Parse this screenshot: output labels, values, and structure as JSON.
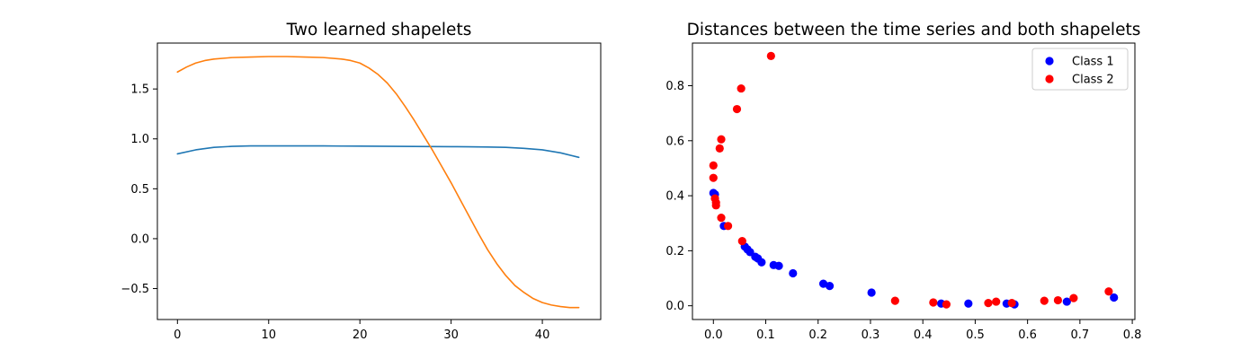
{
  "chart_data": [
    {
      "type": "line",
      "title": "Two learned shapelets",
      "xlabel": "",
      "ylabel": "",
      "xlim": [
        -2.2,
        46.4
      ],
      "ylim": [
        -0.81,
        1.96
      ],
      "xticks": [
        0,
        10,
        20,
        30,
        40
      ],
      "yticks": [
        -0.5,
        0.0,
        0.5,
        1.0,
        1.5
      ],
      "ytick_labels": [
        "−0.5",
        "0.0",
        "0.5",
        "1.0",
        "1.5"
      ],
      "grid": false,
      "series": [
        {
          "color": "#1f77b4",
          "x": [
            0,
            2,
            4,
            6,
            8,
            10,
            12,
            14,
            16,
            18,
            20,
            22,
            24,
            26,
            28,
            30,
            32,
            34,
            36,
            38,
            40,
            42,
            44
          ],
          "y": [
            0.85,
            0.89,
            0.915,
            0.925,
            0.93,
            0.93,
            0.93,
            0.93,
            0.93,
            0.928,
            0.927,
            0.926,
            0.925,
            0.924,
            0.923,
            0.922,
            0.921,
            0.918,
            0.915,
            0.905,
            0.89,
            0.86,
            0.815
          ]
        },
        {
          "color": "#ff7f0e",
          "x": [
            0,
            1,
            2,
            3,
            4,
            6,
            8,
            10,
            12,
            14,
            16,
            18,
            19,
            20,
            21,
            22,
            23,
            24,
            25,
            26,
            27,
            28,
            29,
            30,
            31,
            32,
            33,
            34,
            35,
            36,
            37,
            38,
            39,
            40,
            41,
            42,
            43,
            44
          ],
          "y": [
            1.67,
            1.72,
            1.76,
            1.785,
            1.8,
            1.815,
            1.82,
            1.825,
            1.825,
            1.82,
            1.815,
            1.8,
            1.785,
            1.76,
            1.71,
            1.645,
            1.56,
            1.45,
            1.32,
            1.18,
            1.03,
            0.88,
            0.72,
            0.56,
            0.39,
            0.22,
            0.05,
            -0.11,
            -0.25,
            -0.37,
            -0.47,
            -0.54,
            -0.6,
            -0.64,
            -0.665,
            -0.68,
            -0.69,
            -0.69
          ]
        }
      ]
    },
    {
      "type": "scatter",
      "title": "Distances between the time series and both shapelets",
      "xlabel": "",
      "ylabel": "",
      "xlim": [
        -0.04,
        0.805
      ],
      "ylim": [
        -0.05,
        0.955
      ],
      "xticks": [
        0.0,
        0.1,
        0.2,
        0.3,
        0.4,
        0.5,
        0.6,
        0.7,
        0.8
      ],
      "yticks": [
        0.0,
        0.2,
        0.4,
        0.6,
        0.8
      ],
      "grid": false,
      "legend_position": "upper-right",
      "series": [
        {
          "name": "Class 1",
          "color": "#0000ff",
          "x": [
            0.0,
            0.003,
            0.02,
            0.06,
            0.065,
            0.07,
            0.08,
            0.085,
            0.092,
            0.115,
            0.125,
            0.152,
            0.21,
            0.222,
            0.302,
            0.435,
            0.487,
            0.56,
            0.575,
            0.675,
            0.765
          ],
          "y": [
            0.41,
            0.405,
            0.29,
            0.215,
            0.205,
            0.195,
            0.178,
            0.172,
            0.158,
            0.148,
            0.145,
            0.118,
            0.08,
            0.072,
            0.048,
            0.008,
            0.008,
            0.008,
            0.005,
            0.015,
            0.03
          ]
        },
        {
          "name": "Class 2",
          "color": "#ff0000",
          "x": [
            0.11,
            0.053,
            0.045,
            0.015,
            0.012,
            0.0,
            0.0,
            0.003,
            0.005,
            0.005,
            0.015,
            0.028,
            0.055,
            0.347,
            0.42,
            0.445,
            0.525,
            0.54,
            0.57,
            0.632,
            0.658,
            0.688,
            0.755
          ],
          "y": [
            0.908,
            0.79,
            0.715,
            0.605,
            0.572,
            0.51,
            0.465,
            0.39,
            0.375,
            0.365,
            0.32,
            0.29,
            0.235,
            0.018,
            0.012,
            0.005,
            0.01,
            0.015,
            0.01,
            0.018,
            0.02,
            0.028,
            0.052
          ]
        }
      ]
    }
  ]
}
